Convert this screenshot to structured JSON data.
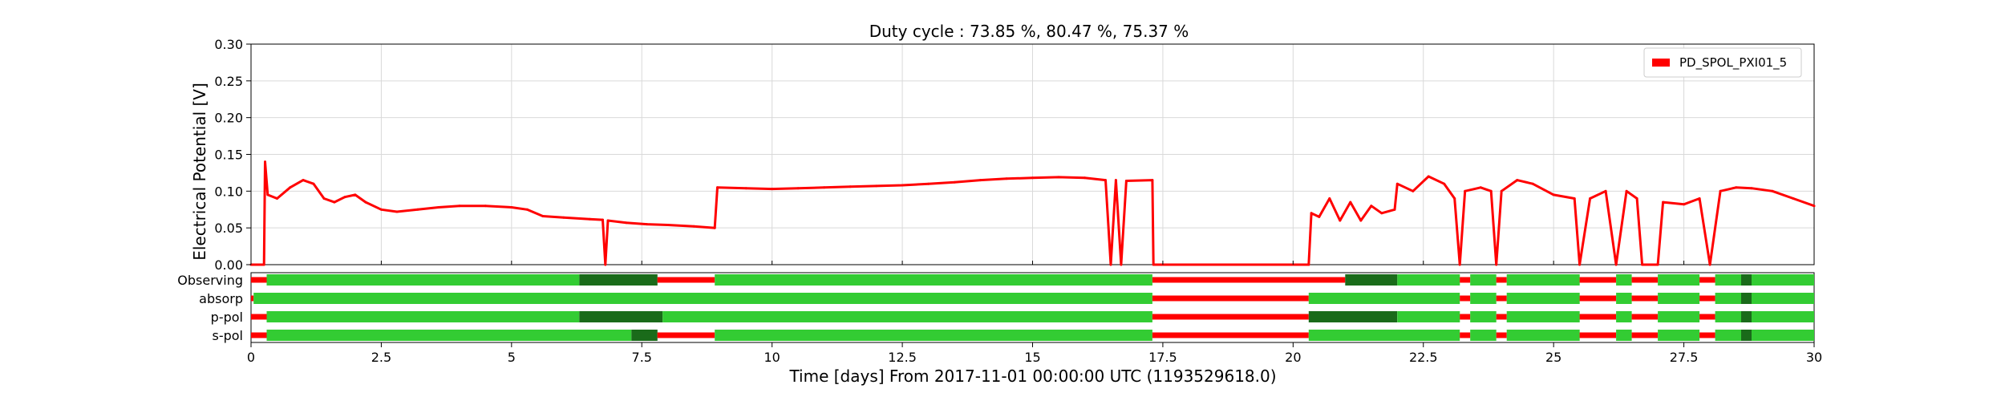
{
  "chart_data": {
    "type": "line",
    "title": "Duty cycle : 73.85 %, 80.47 %, 75.37 %",
    "xlabel": "Time [days] From 2017-11-01 00:00:00 UTC (1193529618.0)",
    "ylabel": "Electrical Potential [V]",
    "xlim": [
      0,
      30
    ],
    "ylim": [
      0,
      0.3
    ],
    "grid": true,
    "legend_position": "top-right",
    "x_ticks": [
      "0",
      "2.5",
      "5",
      "7.5",
      "10",
      "12.5",
      "15",
      "17.5",
      "20",
      "22.5",
      "25",
      "27.5",
      "30"
    ],
    "y_ticks": [
      "0.00",
      "0.05",
      "0.10",
      "0.15",
      "0.20",
      "0.25",
      "0.30"
    ],
    "series": [
      {
        "name": "PD_SPOL_PXI01_5",
        "color": "#ff0000",
        "points": [
          [
            0,
            0
          ],
          [
            0.25,
            0
          ],
          [
            0.27,
            0.14
          ],
          [
            0.32,
            0.095
          ],
          [
            0.5,
            0.09
          ],
          [
            0.75,
            0.105
          ],
          [
            1.0,
            0.115
          ],
          [
            1.2,
            0.11
          ],
          [
            1.4,
            0.09
          ],
          [
            1.6,
            0.085
          ],
          [
            1.8,
            0.092
          ],
          [
            2.0,
            0.095
          ],
          [
            2.2,
            0.085
          ],
          [
            2.5,
            0.075
          ],
          [
            2.8,
            0.072
          ],
          [
            3.2,
            0.075
          ],
          [
            3.6,
            0.078
          ],
          [
            4.0,
            0.08
          ],
          [
            4.5,
            0.08
          ],
          [
            5.0,
            0.078
          ],
          [
            5.3,
            0.075
          ],
          [
            5.6,
            0.066
          ],
          [
            6.0,
            0.064
          ],
          [
            6.5,
            0.062
          ],
          [
            6.75,
            0.061
          ],
          [
            6.8,
            0.0
          ],
          [
            6.85,
            0.06
          ],
          [
            7.2,
            0.057
          ],
          [
            7.6,
            0.055
          ],
          [
            8.0,
            0.054
          ],
          [
            8.5,
            0.052
          ],
          [
            8.9,
            0.05
          ],
          [
            8.95,
            0.105
          ],
          [
            9.5,
            0.104
          ],
          [
            10.0,
            0.103
          ],
          [
            10.5,
            0.104
          ],
          [
            11.0,
            0.105
          ],
          [
            11.5,
            0.106
          ],
          [
            12.0,
            0.107
          ],
          [
            12.5,
            0.108
          ],
          [
            13.0,
            0.11
          ],
          [
            13.5,
            0.112
          ],
          [
            14.0,
            0.115
          ],
          [
            14.5,
            0.117
          ],
          [
            15.0,
            0.118
          ],
          [
            15.5,
            0.119
          ],
          [
            16.0,
            0.118
          ],
          [
            16.4,
            0.115
          ],
          [
            16.5,
            0.0
          ],
          [
            16.6,
            0.115
          ],
          [
            16.7,
            0.0
          ],
          [
            16.8,
            0.114
          ],
          [
            17.3,
            0.115
          ],
          [
            17.32,
            0.0
          ],
          [
            20.3,
            0.0
          ],
          [
            20.35,
            0.07
          ],
          [
            20.5,
            0.065
          ],
          [
            20.7,
            0.09
          ],
          [
            20.9,
            0.06
          ],
          [
            21.1,
            0.085
          ],
          [
            21.3,
            0.06
          ],
          [
            21.5,
            0.08
          ],
          [
            21.7,
            0.07
          ],
          [
            21.95,
            0.075
          ],
          [
            22.0,
            0.11
          ],
          [
            22.3,
            0.1
          ],
          [
            22.6,
            0.12
          ],
          [
            22.9,
            0.11
          ],
          [
            23.1,
            0.09
          ],
          [
            23.2,
            0.0
          ],
          [
            23.3,
            0.1
          ],
          [
            23.6,
            0.105
          ],
          [
            23.8,
            0.1
          ],
          [
            23.9,
            0.0
          ],
          [
            24.0,
            0.1
          ],
          [
            24.3,
            0.115
          ],
          [
            24.6,
            0.11
          ],
          [
            25.0,
            0.095
          ],
          [
            25.4,
            0.09
          ],
          [
            25.5,
            0.0
          ],
          [
            25.7,
            0.09
          ],
          [
            26.0,
            0.1
          ],
          [
            26.2,
            0.0
          ],
          [
            26.4,
            0.1
          ],
          [
            26.6,
            0.09
          ],
          [
            26.7,
            0.0
          ],
          [
            27.0,
            0.0
          ],
          [
            27.1,
            0.085
          ],
          [
            27.5,
            0.082
          ],
          [
            27.8,
            0.09
          ],
          [
            28.0,
            0.0
          ],
          [
            28.2,
            0.1
          ],
          [
            28.5,
            0.105
          ],
          [
            28.8,
            0.104
          ],
          [
            29.2,
            0.1
          ],
          [
            29.6,
            0.09
          ],
          [
            30.0,
            0.08
          ]
        ]
      }
    ],
    "segment_rows": [
      {
        "label": "Observing",
        "segments": [
          [
            0,
            0.3,
            "off"
          ],
          [
            0.3,
            6.3,
            "on"
          ],
          [
            6.3,
            7.8,
            "dark"
          ],
          [
            7.8,
            8.9,
            "off"
          ],
          [
            8.9,
            17.3,
            "on"
          ],
          [
            17.3,
            21.0,
            "off"
          ],
          [
            21.0,
            22.0,
            "dark"
          ],
          [
            22.0,
            23.2,
            "on"
          ],
          [
            23.2,
            23.4,
            "off"
          ],
          [
            23.4,
            23.9,
            "on"
          ],
          [
            23.9,
            24.1,
            "off"
          ],
          [
            24.1,
            25.5,
            "on"
          ],
          [
            25.5,
            26.2,
            "off"
          ],
          [
            26.2,
            26.5,
            "on"
          ],
          [
            26.5,
            27.0,
            "off"
          ],
          [
            27.0,
            27.8,
            "on"
          ],
          [
            27.8,
            28.1,
            "off"
          ],
          [
            28.1,
            28.6,
            "on"
          ],
          [
            28.6,
            28.8,
            "dark"
          ],
          [
            28.8,
            30.0,
            "on"
          ]
        ]
      },
      {
        "label": "absorp",
        "segments": [
          [
            0,
            0.05,
            "off"
          ],
          [
            0.05,
            17.3,
            "on"
          ],
          [
            17.3,
            20.3,
            "off"
          ],
          [
            20.3,
            23.2,
            "on"
          ],
          [
            23.2,
            23.4,
            "off"
          ],
          [
            23.4,
            23.9,
            "on"
          ],
          [
            23.9,
            24.1,
            "off"
          ],
          [
            24.1,
            25.5,
            "on"
          ],
          [
            25.5,
            26.2,
            "off"
          ],
          [
            26.2,
            26.5,
            "on"
          ],
          [
            26.5,
            27.0,
            "off"
          ],
          [
            27.0,
            27.8,
            "on"
          ],
          [
            27.8,
            28.1,
            "off"
          ],
          [
            28.1,
            28.6,
            "on"
          ],
          [
            28.6,
            28.8,
            "dark"
          ],
          [
            28.8,
            30.0,
            "on"
          ]
        ]
      },
      {
        "label": "p-pol",
        "segments": [
          [
            0,
            0.3,
            "off"
          ],
          [
            0.3,
            6.3,
            "on"
          ],
          [
            6.3,
            7.9,
            "dark"
          ],
          [
            7.9,
            17.3,
            "on"
          ],
          [
            17.3,
            20.3,
            "off"
          ],
          [
            20.3,
            22.0,
            "dark"
          ],
          [
            22.0,
            23.2,
            "on"
          ],
          [
            23.2,
            23.4,
            "off"
          ],
          [
            23.4,
            23.9,
            "on"
          ],
          [
            23.9,
            24.1,
            "off"
          ],
          [
            24.1,
            25.5,
            "on"
          ],
          [
            25.5,
            26.2,
            "off"
          ],
          [
            26.2,
            26.5,
            "on"
          ],
          [
            26.5,
            27.0,
            "off"
          ],
          [
            27.0,
            27.8,
            "on"
          ],
          [
            27.8,
            28.1,
            "off"
          ],
          [
            28.1,
            28.6,
            "on"
          ],
          [
            28.6,
            28.8,
            "dark"
          ],
          [
            28.8,
            30.0,
            "on"
          ]
        ]
      },
      {
        "label": "s-pol",
        "segments": [
          [
            0,
            0.3,
            "off"
          ],
          [
            0.3,
            7.3,
            "on"
          ],
          [
            7.3,
            7.8,
            "dark"
          ],
          [
            7.8,
            8.9,
            "off"
          ],
          [
            8.9,
            17.3,
            "on"
          ],
          [
            17.3,
            20.3,
            "off"
          ],
          [
            20.3,
            23.2,
            "on"
          ],
          [
            23.2,
            23.4,
            "off"
          ],
          [
            23.4,
            23.9,
            "on"
          ],
          [
            23.9,
            24.1,
            "off"
          ],
          [
            24.1,
            25.5,
            "on"
          ],
          [
            25.5,
            26.2,
            "off"
          ],
          [
            26.2,
            26.5,
            "on"
          ],
          [
            26.5,
            27.0,
            "off"
          ],
          [
            27.0,
            27.8,
            "on"
          ],
          [
            27.8,
            28.1,
            "off"
          ],
          [
            28.1,
            28.6,
            "on"
          ],
          [
            28.6,
            28.8,
            "dark"
          ],
          [
            28.8,
            30.0,
            "on"
          ]
        ]
      }
    ],
    "segment_colors": {
      "on": "#33cc33",
      "dark": "#1a6b1a",
      "off": "#ff0000"
    }
  }
}
